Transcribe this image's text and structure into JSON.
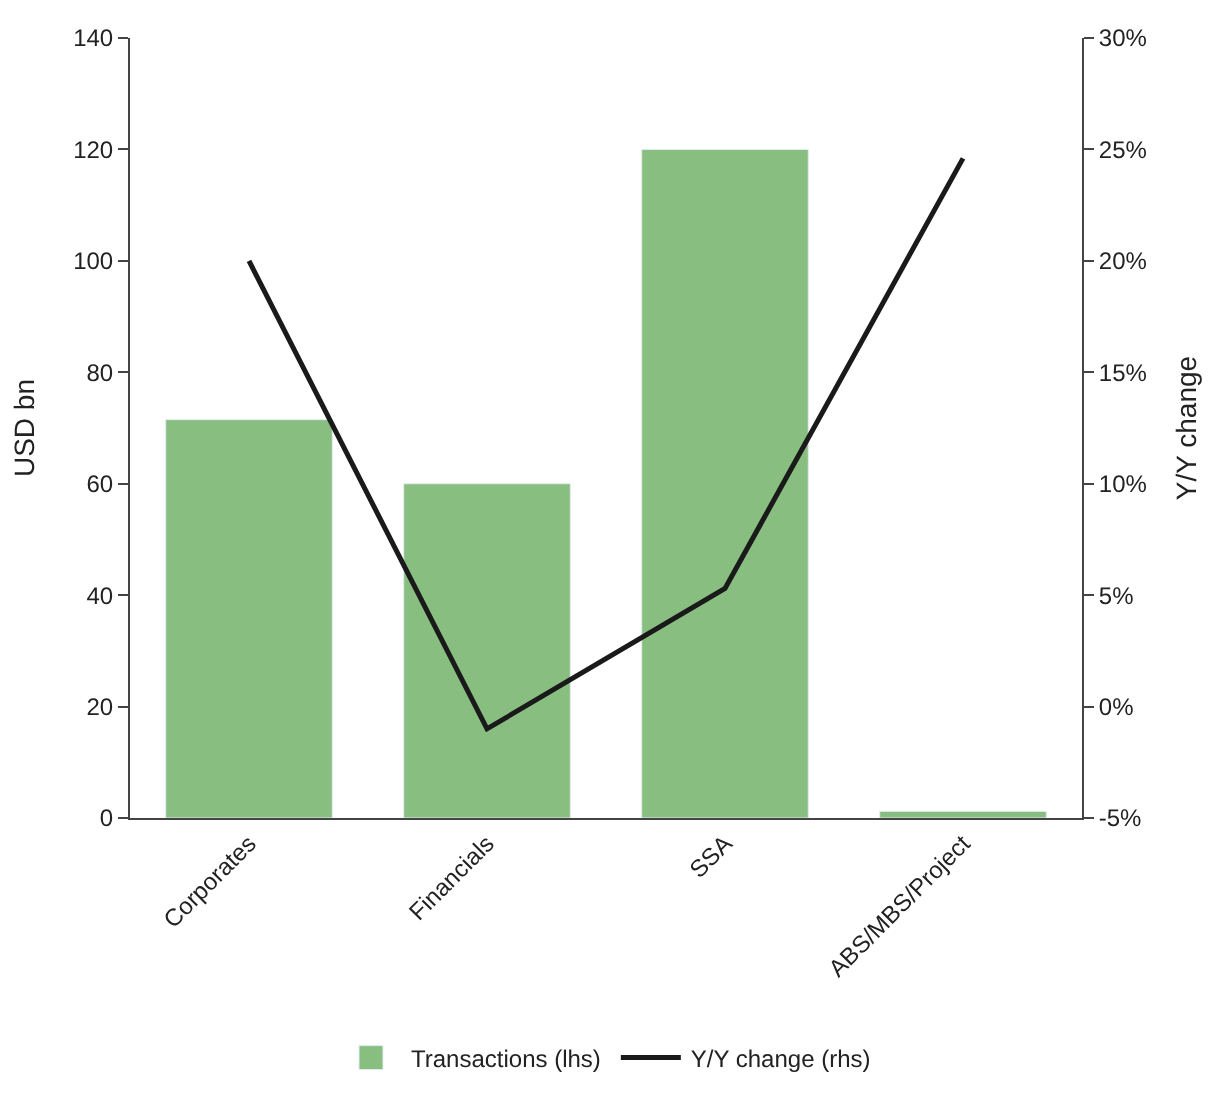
{
  "chart_data": {
    "type": "bar",
    "ylabel": "USD bn",
    "y2label": "Y/Y change",
    "categories": [
      "Corporates",
      "Financials",
      "SSA",
      "ABS/MBS/Project"
    ],
    "series": [
      {
        "name": "Transactions (lhs)",
        "color": "#88bf80",
        "values": [
          71.5,
          60,
          120,
          1.2
        ]
      },
      {
        "name": "Y/Y change (rhs)",
        "type": "line",
        "axis": "y2",
        "color": "#1a1a1a",
        "values": [
          20,
          -1,
          5.3,
          24.6
        ]
      }
    ],
    "ylim": [
      0,
      140
    ],
    "yticks": [
      0,
      20,
      40,
      60,
      80,
      100,
      120,
      140
    ],
    "y2lim": [
      -5,
      30
    ],
    "y2ticks": [
      {
        "value": -5,
        "label": "-5%"
      },
      {
        "value": 0,
        "label": "0%"
      },
      {
        "value": 5,
        "label": "5%"
      },
      {
        "value": 10,
        "label": "10%"
      },
      {
        "value": 15,
        "label": "15%"
      },
      {
        "value": 20,
        "label": "20%"
      },
      {
        "value": 25,
        "label": "25%"
      },
      {
        "value": 30,
        "label": "30%"
      }
    ],
    "legend": "bottom",
    "marker": "none",
    "line_style": "solid"
  }
}
